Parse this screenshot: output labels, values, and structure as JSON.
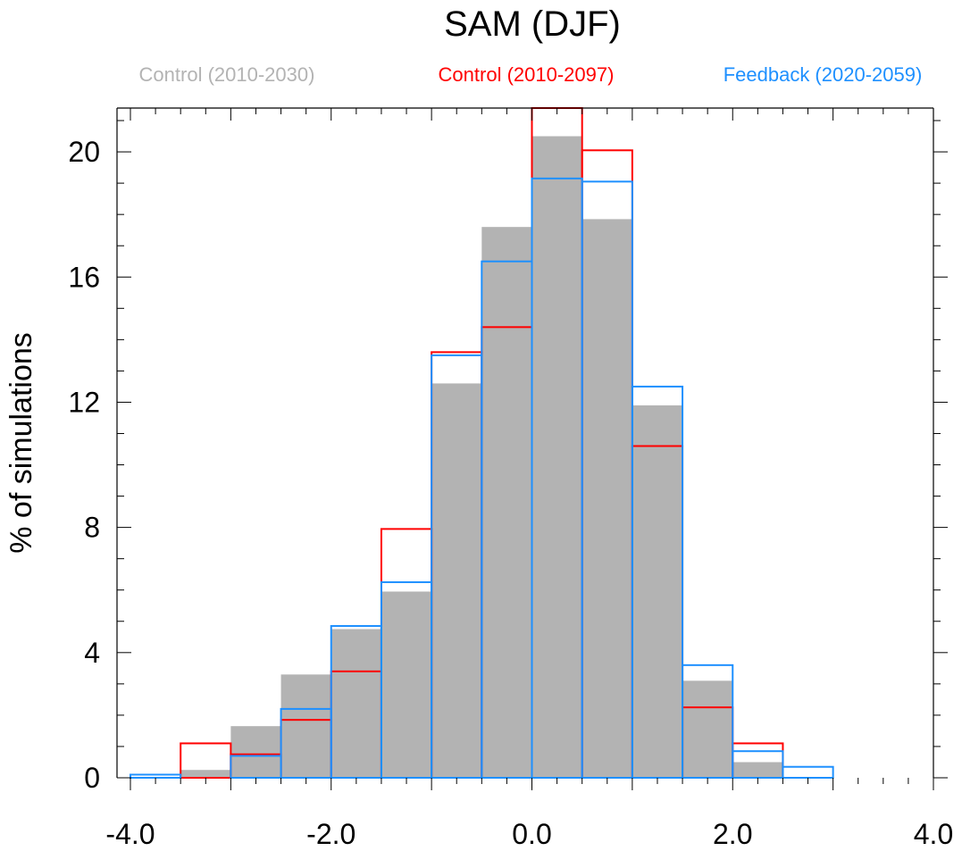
{
  "chart_data": {
    "type": "bar",
    "title": "SAM (DJF)",
    "xlabel": "",
    "ylabel": "% of simulations",
    "xlim": [
      -4.0,
      4.0
    ],
    "ylim": [
      0,
      21.4
    ],
    "x_ticks": [
      "-4.0",
      "-2.0",
      "0.0",
      "2.0",
      "4.0"
    ],
    "y_ticks": [
      "0",
      "4",
      "8",
      "12",
      "16",
      "20"
    ],
    "bin_edges": [
      -4.0,
      -3.5,
      -3.0,
      -2.5,
      -2.0,
      -1.5,
      -1.0,
      -0.5,
      0.0,
      0.5,
      1.0,
      1.5,
      2.0,
      2.5,
      3.0,
      3.5,
      4.0
    ],
    "series": [
      {
        "name": "Control (2010-2030)",
        "style": "filled",
        "color": "#b3b3b3",
        "values": [
          0.0,
          0.25,
          1.65,
          3.3,
          4.75,
          5.95,
          12.6,
          17.6,
          20.5,
          17.85,
          11.9,
          3.1,
          0.5,
          0.0,
          0.0,
          0.0
        ]
      },
      {
        "name": "Control (2010-2097)",
        "style": "outline",
        "color": "#ff0000",
        "values": [
          0.0,
          1.1,
          0.75,
          1.85,
          3.4,
          7.95,
          13.6,
          14.4,
          21.4,
          20.05,
          10.6,
          2.25,
          1.1,
          0.0,
          0.0,
          0.0
        ]
      },
      {
        "name": "Feedback (2020-2059)",
        "style": "outline",
        "color": "#1e90ff",
        "values": [
          0.1,
          0.0,
          0.7,
          2.2,
          4.85,
          6.25,
          13.5,
          16.5,
          19.15,
          19.05,
          12.5,
          3.6,
          0.85,
          0.35,
          0.0,
          0.0
        ]
      }
    ],
    "legend_position": "top",
    "grid": false
  }
}
